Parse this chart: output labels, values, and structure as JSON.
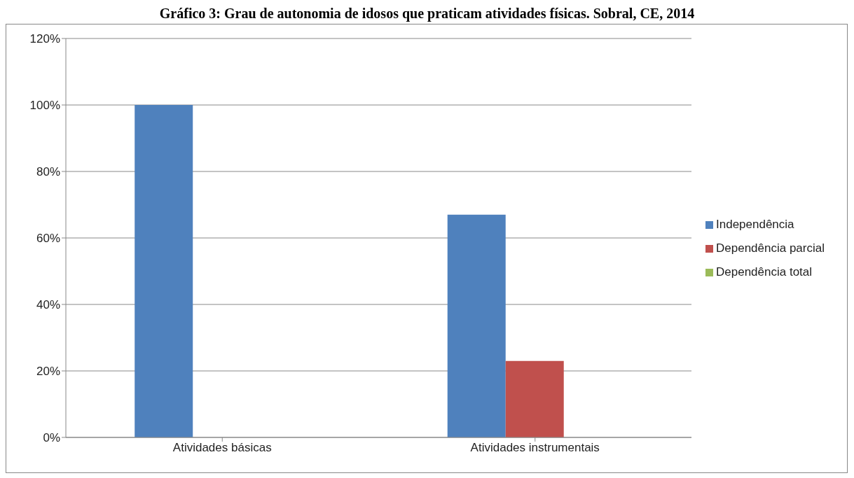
{
  "chart_data": {
    "type": "bar",
    "title": "Gráfico 3: Grau de autonomia de idosos  que praticam atividades físicas. Sobral, CE, 2014",
    "categories": [
      "Atividades básicas",
      "Atividades instrumentais"
    ],
    "series": [
      {
        "name": "Independência",
        "color": "#4f81bd",
        "values": [
          100,
          67
        ]
      },
      {
        "name": "Dependência parcial",
        "color": "#c0504d",
        "values": [
          0,
          23
        ]
      },
      {
        "name": "Dependência total",
        "color": "#9bbb59",
        "values": [
          0,
          0
        ]
      }
    ],
    "ylim": [
      0,
      120
    ],
    "yticks": [
      {
        "value": 0,
        "label": "0%"
      },
      {
        "value": 20,
        "label": "20%"
      },
      {
        "value": 40,
        "label": "40%"
      },
      {
        "value": 60,
        "label": "60%"
      },
      {
        "value": 80,
        "label": "80%"
      },
      {
        "value": 100,
        "label": "100%"
      },
      {
        "value": 120,
        "label": "120%"
      }
    ],
    "grid": "y",
    "legend": "right"
  }
}
